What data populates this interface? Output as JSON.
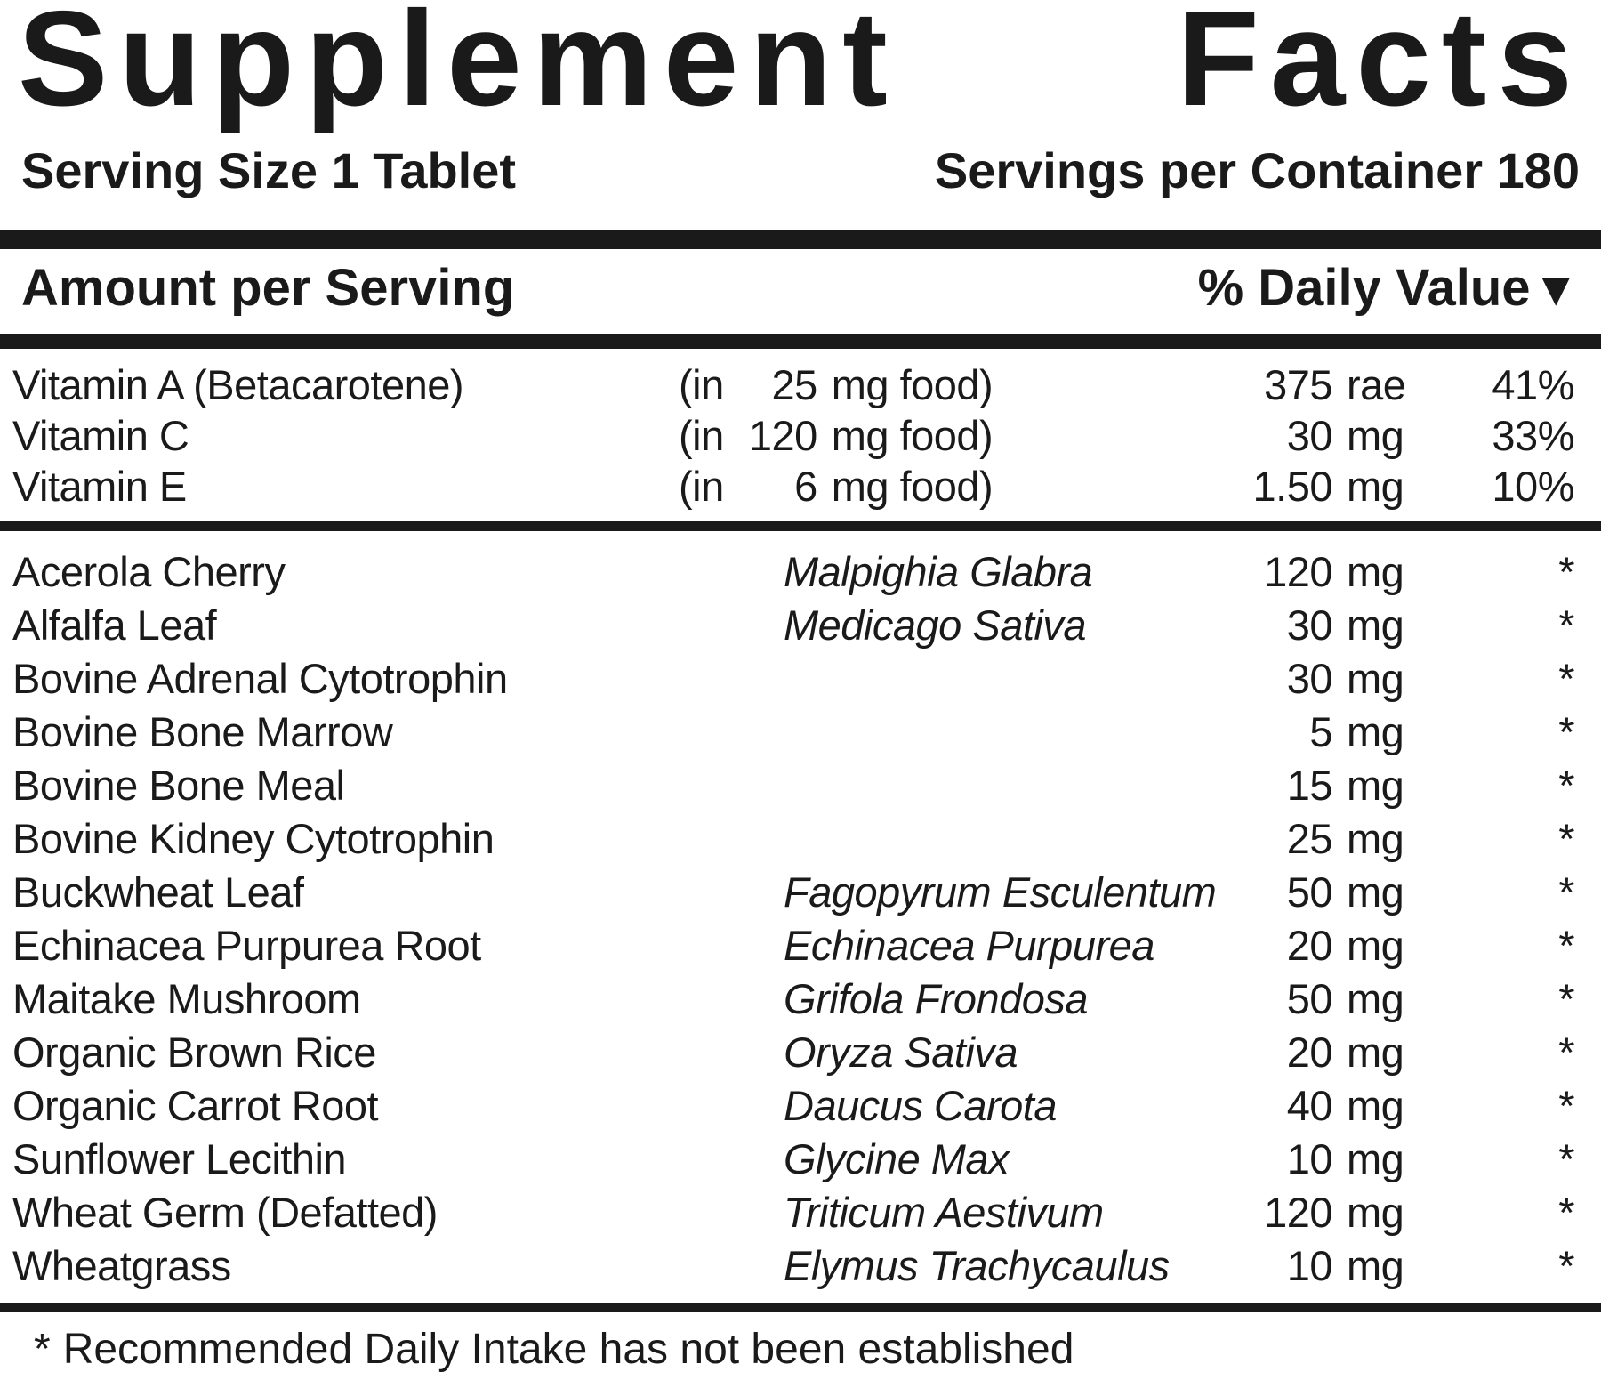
{
  "colors": {
    "text": "#1a1a1a",
    "background": "#ffffff",
    "divider_bar": "#1a1a1a"
  },
  "label": {
    "title": {
      "word1": "Supplement",
      "word2": "Facts"
    },
    "serving_size": "Serving Size 1 Tablet",
    "servings_per_container": "Servings per Container 180",
    "columns_header": {
      "amount_per_serving": "Amount per Serving",
      "daily_value": "% Daily Value",
      "arrow": "▼"
    },
    "vitamins": [
      {
        "name": "Vitamin A (Betacarotene)",
        "food_prefix": "(in",
        "food_amount": "25",
        "food_suffix": "mg food)",
        "amount": "375",
        "unit": "rae",
        "daily_value": "41%"
      },
      {
        "name": "Vitamin C",
        "food_prefix": "(in",
        "food_amount": "120",
        "food_suffix": "mg food)",
        "amount": "30",
        "unit": "mg",
        "daily_value": "33%"
      },
      {
        "name": "Vitamin E",
        "food_prefix": "(in",
        "food_amount": "6",
        "food_suffix": "mg food)",
        "amount": "1.50",
        "unit": "mg",
        "daily_value": "10%"
      }
    ],
    "ingredients": [
      {
        "name": "Acerola Cherry",
        "latin": "Malpighia Glabra",
        "amount": "120",
        "unit": "mg",
        "daily_value": "*"
      },
      {
        "name": "Alfalfa Leaf",
        "latin": "Medicago Sativa",
        "amount": "30",
        "unit": "mg",
        "daily_value": "*"
      },
      {
        "name": "Bovine Adrenal Cytotrophin",
        "latin": "",
        "amount": "30",
        "unit": "mg",
        "daily_value": "*"
      },
      {
        "name": "Bovine Bone Marrow",
        "latin": "",
        "amount": "5",
        "unit": "mg",
        "daily_value": "*"
      },
      {
        "name": "Bovine Bone Meal",
        "latin": "",
        "amount": "15",
        "unit": "mg",
        "daily_value": "*"
      },
      {
        "name": "Bovine Kidney Cytotrophin",
        "latin": "",
        "amount": "25",
        "unit": "mg",
        "daily_value": "*"
      },
      {
        "name": "Buckwheat Leaf",
        "latin": "Fagopyrum Esculentum",
        "amount": "50",
        "unit": "mg",
        "daily_value": "*"
      },
      {
        "name": "Echinacea Purpurea Root",
        "latin": "Echinacea Purpurea",
        "amount": "20",
        "unit": "mg",
        "daily_value": "*"
      },
      {
        "name": "Maitake Mushroom",
        "latin": "Grifola Frondosa",
        "amount": "50",
        "unit": "mg",
        "daily_value": "*"
      },
      {
        "name": "Organic Brown Rice",
        "latin": "Oryza Sativa",
        "amount": "20",
        "unit": "mg",
        "daily_value": "*"
      },
      {
        "name": "Organic Carrot Root",
        "latin": "Daucus Carota",
        "amount": "40",
        "unit": "mg",
        "daily_value": "*"
      },
      {
        "name": "Sunflower Lecithin",
        "latin": "Glycine Max",
        "amount": "10",
        "unit": "mg",
        "daily_value": "*"
      },
      {
        "name": "Wheat Germ (Defatted)",
        "latin": "Triticum Aestivum",
        "amount": "120",
        "unit": "mg",
        "daily_value": "*"
      },
      {
        "name": "Wheatgrass",
        "latin": "Elymus Trachycaulus",
        "amount": "10",
        "unit": "mg",
        "daily_value": "*"
      }
    ],
    "footnote": {
      "marker": "*",
      "text": "Recommended Daily Intake has not been established"
    }
  }
}
